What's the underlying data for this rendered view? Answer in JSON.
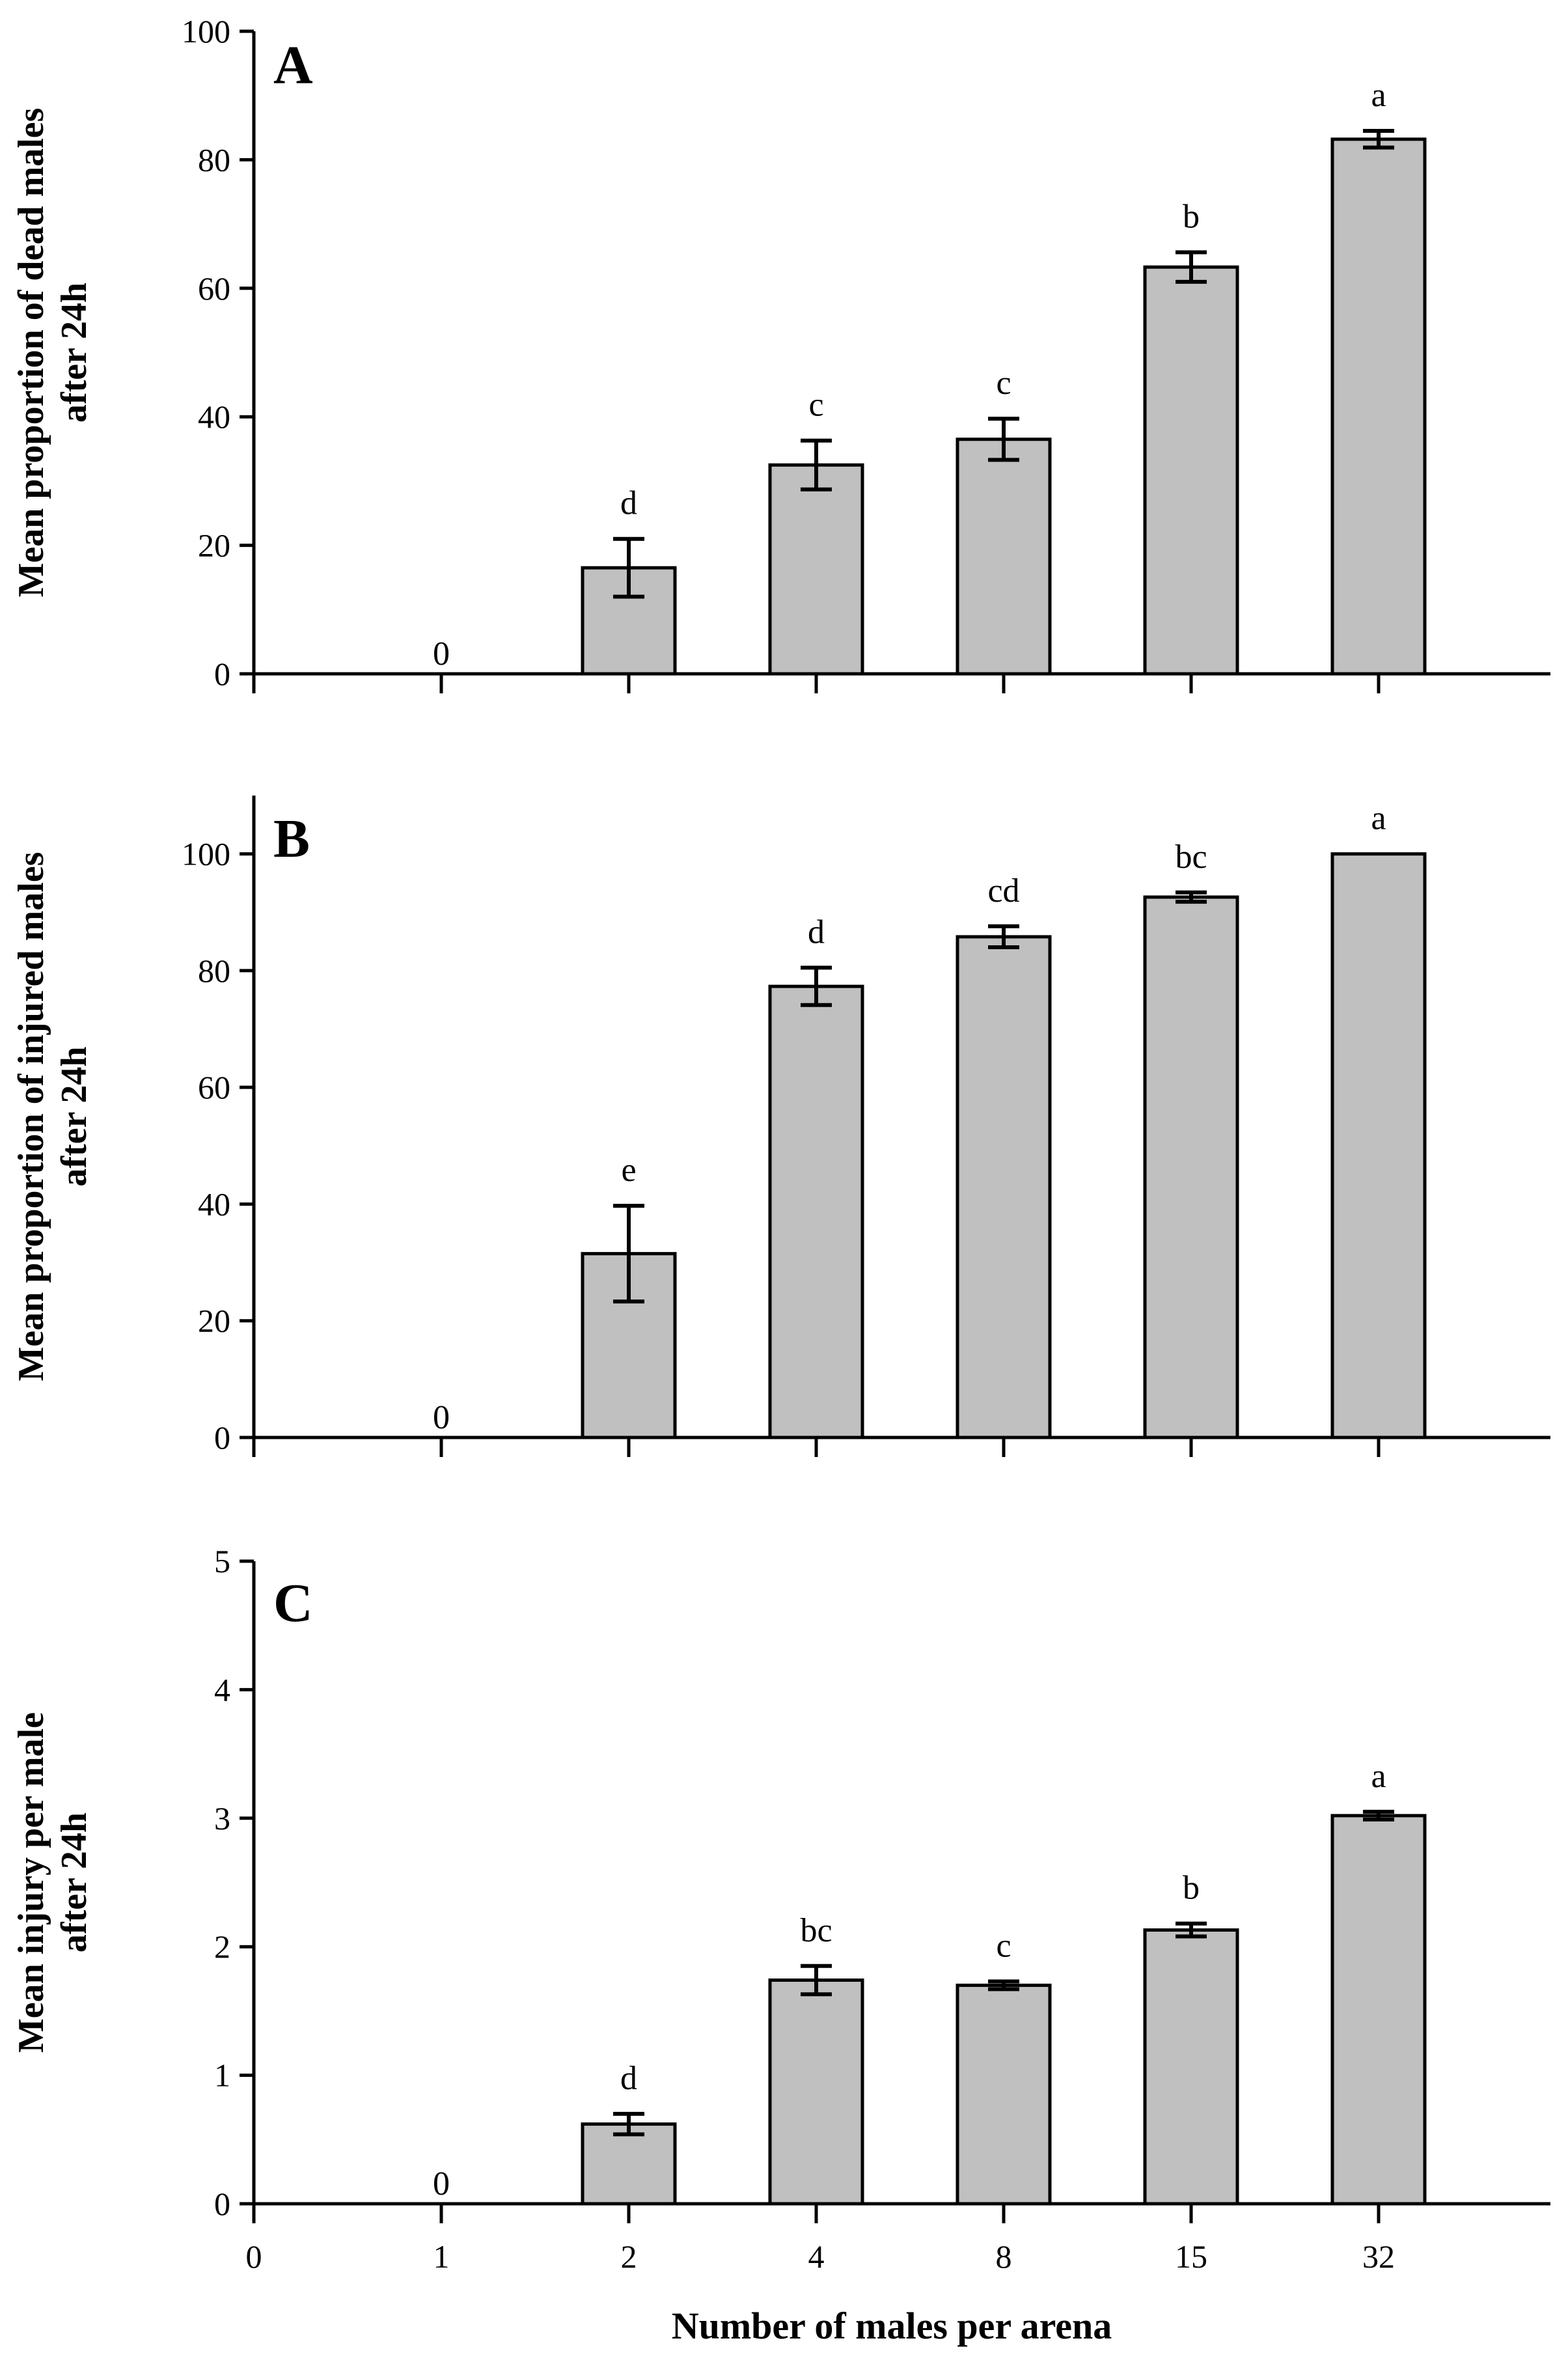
{
  "chart_data": [
    {
      "type": "bar",
      "panel": "A",
      "ylabel_lines": [
        "Mean proportion of dead males",
        "after 24h"
      ],
      "ylim": [
        0,
        100
      ],
      "yticks": [
        0,
        20,
        40,
        60,
        80,
        100
      ],
      "x_ticks": [
        "0",
        "1",
        "2",
        "4",
        "8",
        "15",
        "32"
      ],
      "categories": [
        "1",
        "2",
        "4",
        "8",
        "15",
        "32"
      ],
      "values": [
        0,
        16.5,
        32.5,
        36.5,
        63.3,
        83.2
      ],
      "errors": [
        0,
        4.5,
        3.8,
        3.2,
        2.3,
        1.3
      ],
      "labels": [
        "0",
        "d",
        "c",
        "c",
        "b",
        "a"
      ]
    },
    {
      "type": "bar",
      "panel": "B",
      "ylabel_lines": [
        "Mean proportion of injured males",
        "after 24h"
      ],
      "ylim": [
        0,
        110
      ],
      "yticks": [
        0,
        20,
        40,
        60,
        80,
        100
      ],
      "x_ticks": [
        "0",
        "1",
        "2",
        "4",
        "8",
        "15",
        "32"
      ],
      "categories": [
        "1",
        "2",
        "4",
        "8",
        "15",
        "32"
      ],
      "values": [
        0,
        31.5,
        77.3,
        85.8,
        92.6,
        100
      ],
      "errors": [
        0,
        8.2,
        3.2,
        1.8,
        0.8,
        0
      ],
      "labels": [
        "0",
        "e",
        "d",
        "cd",
        "bc",
        "a"
      ]
    },
    {
      "type": "bar",
      "panel": "C",
      "ylabel_lines": [
        "Mean injury per male",
        "after 24h"
      ],
      "ylim": [
        0,
        5
      ],
      "yticks": [
        0,
        1,
        2,
        3,
        4,
        5
      ],
      "x_ticks": [
        "0",
        "1",
        "2",
        "4",
        "8",
        "15",
        "32"
      ],
      "categories": [
        "1",
        "2",
        "4",
        "8",
        "15",
        "32"
      ],
      "values": [
        0,
        0.62,
        1.74,
        1.7,
        2.13,
        3.02
      ],
      "errors": [
        0,
        0.08,
        0.11,
        0.03,
        0.05,
        0.03
      ],
      "labels": [
        "0",
        "d",
        "bc",
        "c",
        "b",
        "a"
      ],
      "xlabel": "Number of males per arena"
    }
  ],
  "colors": {
    "bar_fill": "#c0c0c0",
    "bar_stroke": "#000000",
    "axis": "#000000"
  }
}
